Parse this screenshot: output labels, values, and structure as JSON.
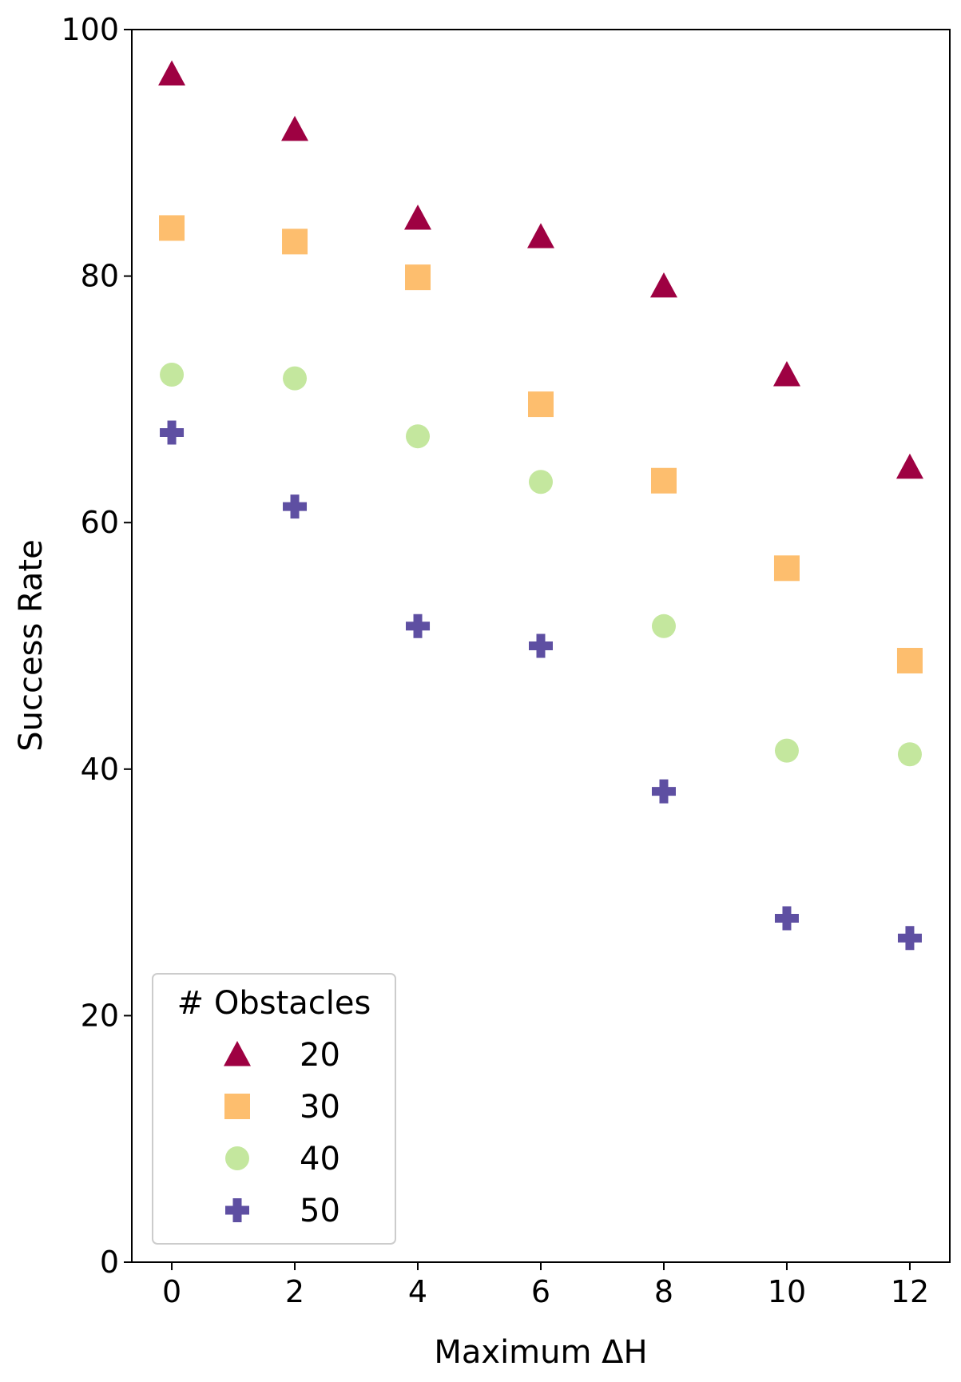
{
  "chart_data": {
    "type": "scatter",
    "xlabel": "Maximum ΔH",
    "ylabel": "Success Rate",
    "xlim": [
      -0.65,
      12.65
    ],
    "ylim": [
      0,
      100
    ],
    "xticks": [
      "0",
      "2",
      "4",
      "6",
      "8",
      "10",
      "12"
    ],
    "yticks": [
      "0",
      "20",
      "40",
      "60",
      "80",
      "100"
    ],
    "grid": false,
    "legend": {
      "title": "# Obstacles",
      "placement": "lower-left"
    },
    "x": [
      0,
      2,
      4,
      6,
      8,
      10,
      12
    ],
    "series": [
      {
        "name": "20",
        "marker": "triangle",
        "color": "#9E0142",
        "values": [
          96.4,
          91.9,
          84.7,
          83.2,
          79.2,
          72.0,
          64.5
        ]
      },
      {
        "name": "30",
        "marker": "square",
        "color": "#FDBE6E",
        "values": [
          83.9,
          82.8,
          79.9,
          69.6,
          63.4,
          56.3,
          48.8
        ]
      },
      {
        "name": "40",
        "marker": "circle",
        "color": "#C4E79E",
        "values": [
          72.0,
          71.7,
          67.0,
          63.3,
          51.6,
          41.5,
          41.2
        ]
      },
      {
        "name": "50",
        "marker": "plus",
        "color": "#5E4FA2",
        "values": [
          67.3,
          61.3,
          51.6,
          50.0,
          38.2,
          27.9,
          26.3
        ]
      }
    ]
  }
}
